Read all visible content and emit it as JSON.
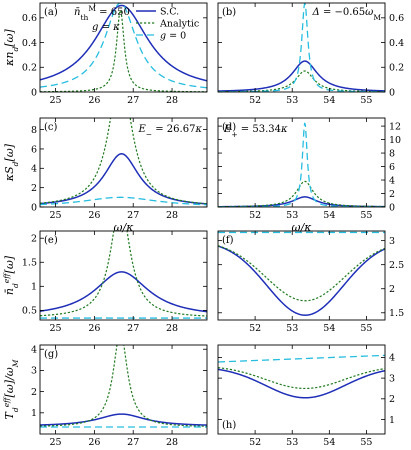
{
  "styles": {
    "sc": {
      "color": "#1f2fb8",
      "dash": "",
      "width": 1.5
    },
    "analytic": {
      "color": "#1e7a1e",
      "dash": "2.2,1.8",
      "width": 1.2
    },
    "g0": {
      "color": "#27bde0",
      "dash": "7,4",
      "width": 1.3
    }
  },
  "chart_data": [
    {
      "id": "a",
      "type": "line",
      "panel_label": "(a)",
      "ylabel": "κn_d[ω]",
      "xlabel": "",
      "xlim": [
        24.6,
        28.9
      ],
      "ylim": [
        0,
        0.72
      ],
      "xticks": [
        25,
        26,
        27,
        28
      ],
      "yticks": [
        0,
        0.2,
        0.4,
        0.6
      ],
      "yside": "left",
      "annotations": [
        "n̄^M_th = 650",
        "g = κ"
      ],
      "legend": {
        "position": "top-right",
        "entries": [
          "S.C.",
          "Analytic",
          "g = 0"
        ]
      },
      "series": [
        {
          "name": "S.C.",
          "style": "sc",
          "shape": "lorentz",
          "center": 26.7,
          "width": 0.85,
          "peak": 0.7,
          "base": 0.0
        },
        {
          "name": "Analytic",
          "style": "analytic",
          "shape": "lorentz",
          "center": 26.67,
          "width": 0.12,
          "peak": 0.66,
          "base": 0.0
        },
        {
          "name": "g = 0",
          "style": "g0",
          "shape": "lorentz",
          "center": 26.67,
          "width": 0.5,
          "peak": 0.72,
          "base": 0.0
        }
      ]
    },
    {
      "id": "b",
      "type": "line",
      "panel_label": "(b)",
      "ylabel": "",
      "xlabel": "",
      "xlim": [
        51.0,
        55.5
      ],
      "ylim": [
        0,
        0.72
      ],
      "xticks": [
        52,
        53,
        54,
        55
      ],
      "yticks": [
        0,
        0.2,
        0.4,
        0.6
      ],
      "yside": "right",
      "annotations": [
        "Δ = −0.65ω_M"
      ],
      "series": [
        {
          "name": "S.C.",
          "style": "sc",
          "shape": "lorentz",
          "center": 53.34,
          "width": 0.42,
          "peak": 0.25,
          "base": 0.0
        },
        {
          "name": "Analytic",
          "style": "analytic",
          "shape": "lorentz",
          "center": 53.34,
          "width": 0.3,
          "peak": 0.17,
          "base": 0.0
        },
        {
          "name": "g = 0",
          "style": "g0",
          "shape": "lorentz",
          "center": 53.34,
          "width": 0.1,
          "peak": 0.72,
          "base": 0.0
        }
      ]
    },
    {
      "id": "c",
      "type": "line",
      "panel_label": "(c)",
      "ylabel": "κS_d[ω]",
      "xlabel": "ω/κ",
      "xlim": [
        24.6,
        28.9
      ],
      "ylim": [
        0,
        9.2
      ],
      "xticks": [
        25,
        26,
        27,
        28
      ],
      "yticks": [
        0,
        2,
        4,
        6,
        8
      ],
      "yside": "left",
      "annotations": [
        "E− = 26.67κ"
      ],
      "series": [
        {
          "name": "S.C.",
          "style": "sc",
          "shape": "lorentz",
          "center": 26.7,
          "width": 0.55,
          "peak": 5.5,
          "base": 0.0
        },
        {
          "name": "Analytic",
          "style": "analytic",
          "shape": "lorentz",
          "center": 26.67,
          "width": 0.35,
          "peak": 14.0,
          "base": 0.0
        },
        {
          "name": "g = 0",
          "style": "g0",
          "shape": "lorentz",
          "center": 26.67,
          "width": 1.2,
          "peak": 1.0,
          "base": 0.0
        }
      ]
    },
    {
      "id": "d",
      "type": "line",
      "panel_label": "(d)",
      "ylabel": "",
      "xlabel": "ω/κ",
      "xlim": [
        51.0,
        55.5
      ],
      "ylim": [
        0,
        13.2
      ],
      "xticks": [
        52,
        53,
        54,
        55
      ],
      "yticks": [
        0,
        2,
        4,
        6,
        8,
        10,
        12
      ],
      "yside": "right",
      "annotations": [
        "E+ = 53.34κ"
      ],
      "series": [
        {
          "name": "S.C.",
          "style": "sc",
          "shape": "lorentz",
          "center": 53.34,
          "width": 0.4,
          "peak": 1.5,
          "base": 0.0
        },
        {
          "name": "Analytic",
          "style": "analytic",
          "shape": "lorentz",
          "center": 53.34,
          "width": 0.28,
          "peak": 3.8,
          "base": 0.0
        },
        {
          "name": "g = 0",
          "style": "g0",
          "shape": "lorentz",
          "center": 53.34,
          "width": 0.08,
          "peak": 12.5,
          "base": 0.0
        }
      ]
    },
    {
      "id": "e",
      "type": "line",
      "panel_label": "(e)",
      "ylabel": "n̄_d^eff[ω]",
      "xlabel": "",
      "xlim": [
        24.6,
        28.9
      ],
      "ylim": [
        0.3,
        2.15
      ],
      "xticks": [
        25,
        26,
        27,
        28
      ],
      "yticks": [
        0.5,
        1.0,
        1.5,
        2.0
      ],
      "yside": "left",
      "annotations": [],
      "series": [
        {
          "name": "S.C.",
          "style": "sc",
          "shape": "lorentz",
          "center": 26.7,
          "width": 0.85,
          "peak": 0.95,
          "base": 0.35
        },
        {
          "name": "Analytic",
          "style": "analytic",
          "shape": "lorentz",
          "center": 26.67,
          "width": 0.3,
          "peak": 2.4,
          "base": 0.34
        },
        {
          "name": "g = 0",
          "style": "g0",
          "shape": "flat",
          "value": 0.34
        }
      ]
    },
    {
      "id": "f",
      "type": "line",
      "panel_label": "(f)",
      "ylabel": "",
      "xlabel": "",
      "xlim": [
        51.0,
        55.5
      ],
      "ylim": [
        1.35,
        3.2
      ],
      "xticks": [
        52,
        53,
        54,
        55
      ],
      "yticks": [
        1.5,
        2.0,
        2.5,
        3.0
      ],
      "yside": "right",
      "annotations": [],
      "series": [
        {
          "name": "S.C.",
          "style": "sc",
          "shape": "gauss",
          "center": 53.35,
          "width": 1.45,
          "amp": -1.55,
          "base": 3.0
        },
        {
          "name": "Analytic",
          "style": "analytic",
          "shape": "gauss",
          "center": 53.35,
          "width": 1.5,
          "amp": -1.25,
          "base": 3.0
        },
        {
          "name": "g = 0",
          "style": "g0",
          "shape": "flat",
          "value": 3.17
        }
      ]
    },
    {
      "id": "g",
      "type": "line",
      "panel_label": "(g)",
      "ylabel": "T_d^eff[ω]/ω_M",
      "xlabel": "ω/κ",
      "xlim": [
        24.6,
        28.9
      ],
      "ylim": [
        0,
        4.2
      ],
      "xticks": [
        25,
        26,
        27,
        28
      ],
      "yticks": [
        1,
        2,
        3,
        4
      ],
      "yside": "left",
      "annotations": [],
      "series": [
        {
          "name": "S.C.",
          "style": "sc",
          "shape": "lorentz",
          "center": 26.7,
          "width": 0.75,
          "peak": 0.58,
          "base": 0.36
        },
        {
          "name": "Analytic",
          "style": "analytic",
          "shape": "lorentz",
          "center": 26.67,
          "width": 0.22,
          "peak": 4.5,
          "base": 0.32
        },
        {
          "name": "g = 0",
          "style": "g0",
          "shape": "flat",
          "value": 0.33
        }
      ]
    },
    {
      "id": "h",
      "type": "line",
      "panel_label": "(h)",
      "ylabel": "",
      "xlabel": "ω/κ",
      "xlim": [
        51.0,
        55.5
      ],
      "ylim": [
        0.3,
        4.6
      ],
      "xticks": [
        52,
        53,
        54,
        55
      ],
      "yticks": [
        1,
        2,
        3,
        4
      ],
      "yside": "right",
      "annotations": [],
      "series": [
        {
          "name": "S.C.",
          "style": "sc",
          "shape": "gauss",
          "center": 53.35,
          "width": 1.5,
          "amp": -1.5,
          "base": 3.55
        },
        {
          "name": "Analytic",
          "style": "analytic",
          "shape": "gauss",
          "center": 53.35,
          "width": 1.5,
          "amp": -1.1,
          "base": 3.6
        },
        {
          "name": "g = 0",
          "style": "g0",
          "shape": "linear",
          "y0": 3.78,
          "y1": 4.1
        }
      ]
    }
  ]
}
